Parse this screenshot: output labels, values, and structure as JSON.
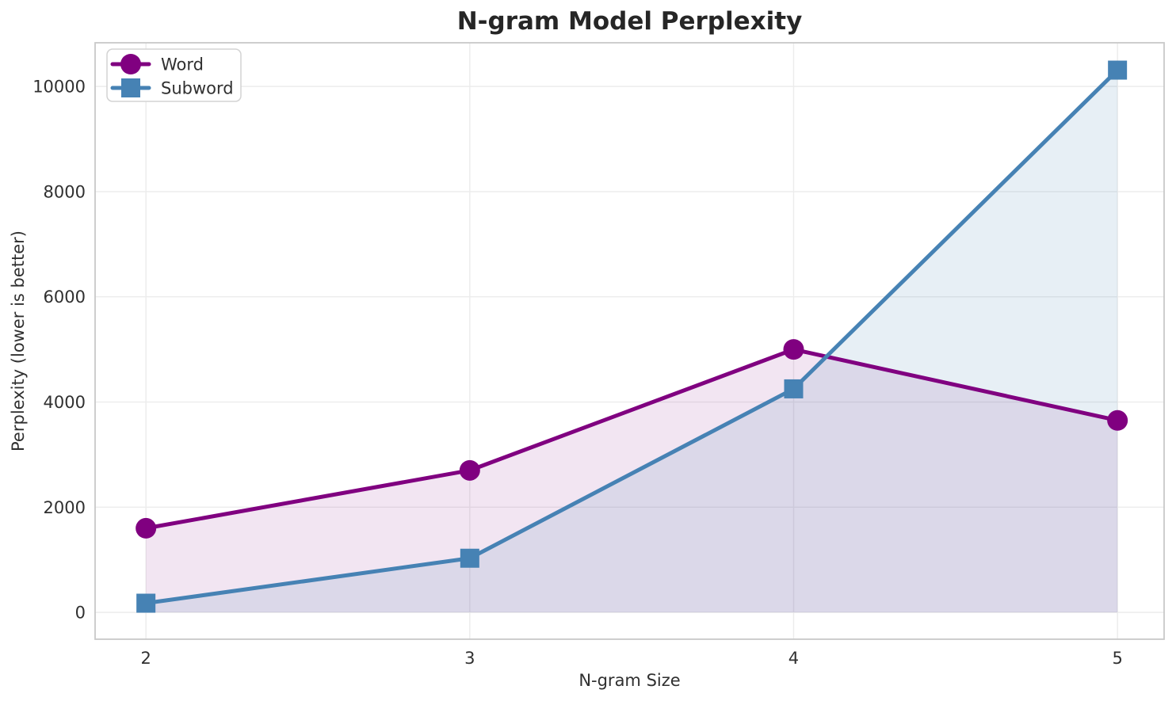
{
  "chart_data": {
    "type": "line",
    "title": "N-gram Model Perplexity",
    "xlabel": "N-gram Size",
    "ylabel": "Perplexity (lower is better)",
    "x": [
      2,
      3,
      4,
      5
    ],
    "xticks": [
      2,
      3,
      4,
      5
    ],
    "yticks": [
      0,
      2000,
      4000,
      6000,
      8000,
      10000
    ],
    "xlim": [
      1.843,
      5.144
    ],
    "ylim": [
      -510,
      10830
    ],
    "grid": true,
    "fill_to_zero": true,
    "legend_position": "upper left",
    "series": [
      {
        "name": "Word",
        "marker": "circle",
        "color": "#800080",
        "fill_alpha": 0.1,
        "values": [
          1600,
          2700,
          5000,
          3650
        ]
      },
      {
        "name": "Subword",
        "marker": "square",
        "color": "#4682B4",
        "fill_alpha": 0.13,
        "values": [
          175,
          1030,
          4250,
          10310
        ]
      }
    ]
  },
  "style": {
    "background": "#ffffff",
    "grid_color": "#ececec",
    "spine_color": "#c9c9c9",
    "tick_color": "#303030",
    "label_color": "#303030",
    "title_color": "#262626",
    "legend_border_color": "#d3d3d3",
    "legend_bg": "#ffffff"
  }
}
